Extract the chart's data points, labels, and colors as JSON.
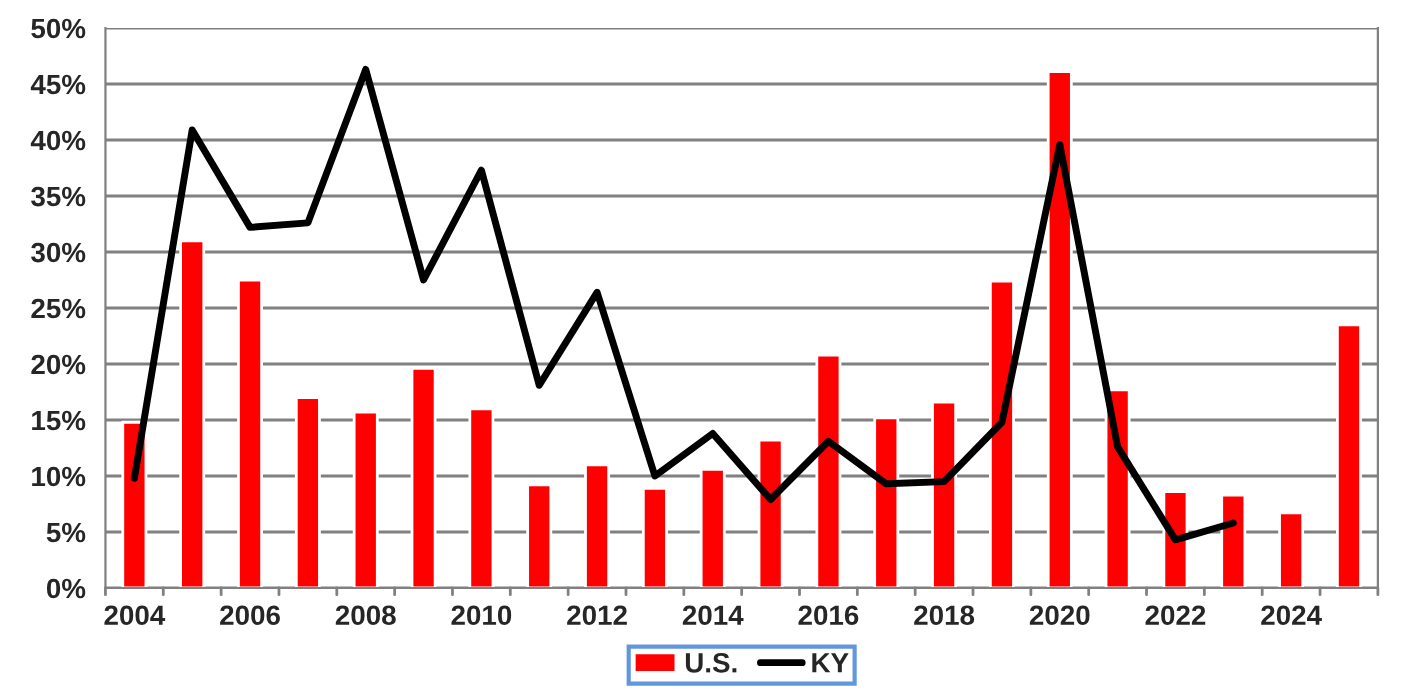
{
  "chart_data": {
    "type": "bar",
    "categories": [
      "2004",
      null,
      "2006",
      null,
      "2008",
      null,
      "2010",
      null,
      "2012",
      null,
      "2014",
      null,
      "2016",
      null,
      "2018",
      null,
      "2020",
      null,
      "2022",
      null,
      "2024",
      null
    ],
    "series": [
      {
        "name": "U.S.",
        "color": "#ff0000",
        "values": [
          14.8,
          31.0,
          27.5,
          17.0,
          15.7,
          19.6,
          16.0,
          9.2,
          11.0,
          8.9,
          10.6,
          13.2,
          20.8,
          15.2,
          16.6,
          27.4,
          46.1,
          17.7,
          8.6,
          8.3,
          6.7,
          23.5
        ]
      },
      {
        "name": "KY",
        "type": "line",
        "color": "#000000",
        "values": [
          9.8,
          40.9,
          32.2,
          32.6,
          46.3,
          27.5,
          37.3,
          18.1,
          26.4,
          10.0,
          13.8,
          7.9,
          13.1,
          9.3,
          9.5,
          14.8,
          39.6,
          12.6,
          4.3,
          5.8,
          null,
          null
        ]
      }
    ],
    "ylim": [
      0,
      50
    ],
    "yticks": [
      {
        "value": 0,
        "label": "0%"
      },
      {
        "value": 5,
        "label": "5%"
      },
      {
        "value": 10,
        "label": "10%"
      },
      {
        "value": 15,
        "label": "15%"
      },
      {
        "value": 20,
        "label": "20%"
      },
      {
        "value": 25,
        "label": "25%"
      },
      {
        "value": 30,
        "label": "30%"
      },
      {
        "value": 35,
        "label": "35%"
      },
      {
        "value": 40,
        "label": "40%"
      },
      {
        "value": 45,
        "label": "45%"
      },
      {
        "value": 50,
        "label": "50%"
      }
    ],
    "grid": "y",
    "legend": "bottom"
  }
}
